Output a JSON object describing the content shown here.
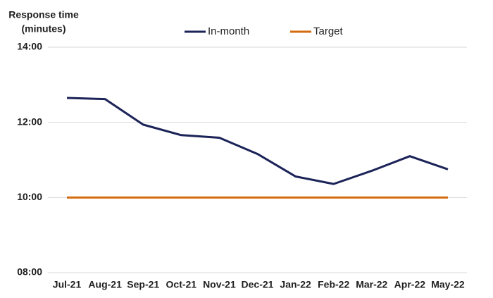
{
  "chart_data": {
    "type": "line",
    "ylabel": [
      "Response time",
      "(minutes)"
    ],
    "categories": [
      "Jul-21",
      "Aug-21",
      "Sep-21",
      "Oct-21",
      "Nov-21",
      "Dec-21",
      "Jan-22",
      "Feb-22",
      "Mar-22",
      "Apr-22",
      "May-22"
    ],
    "series": [
      {
        "name": "In-month",
        "color": "#1b2358",
        "values": [
          12.65,
          12.62,
          11.94,
          11.66,
          11.59,
          11.16,
          10.56,
          10.36,
          10.71,
          11.1,
          10.75
        ]
      },
      {
        "name": "Target",
        "color": "#d46b0c",
        "values": [
          10,
          10,
          10,
          10,
          10,
          10,
          10,
          10,
          10,
          10,
          10
        ]
      }
    ],
    "ylim": [
      8,
      14
    ],
    "yticks": [
      {
        "value": 8,
        "label": "08:00"
      },
      {
        "value": 10,
        "label": "10:00"
      },
      {
        "value": 12,
        "label": "12:00"
      },
      {
        "value": 14,
        "label": "14:00"
      }
    ],
    "grid": true,
    "legend": "top"
  }
}
